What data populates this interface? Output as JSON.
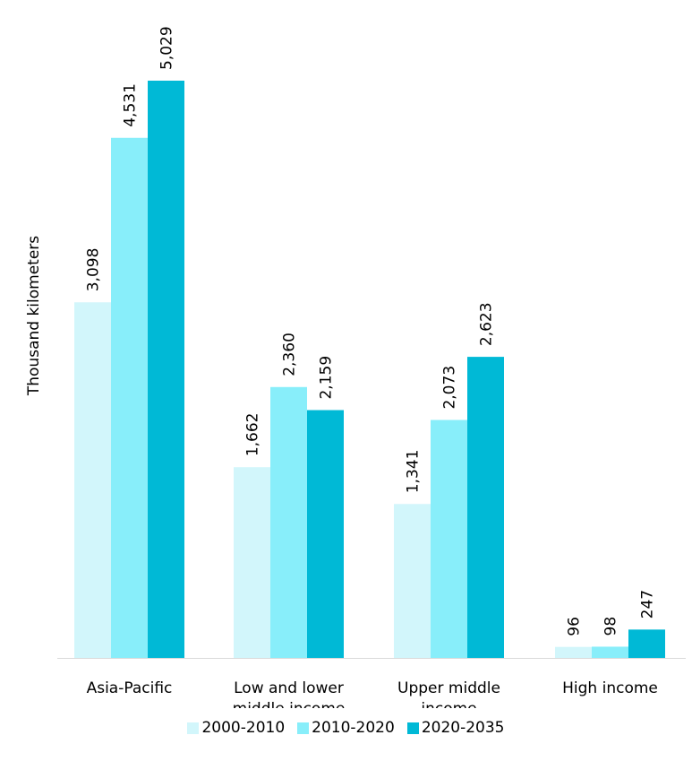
{
  "chart_data": {
    "type": "bar",
    "title": "",
    "xlabel": "",
    "ylabel": "Thousand kilometers",
    "categories": [
      "Asia-Pacific",
      "Low and lower middle income",
      "Upper middle income",
      "High income"
    ],
    "category_lines": [
      [
        "Asia-Pacific"
      ],
      [
        "Low and lower",
        "middle income"
      ],
      [
        "Upper middle",
        "income"
      ],
      [
        "High income"
      ]
    ],
    "series": [
      {
        "name": "2000-2010",
        "color": "#d2f6fb",
        "values": [
          3098,
          1662,
          1341,
          96
        ],
        "labels": [
          "3,098",
          "1,662",
          "1,341",
          "96"
        ]
      },
      {
        "name": "2010-2020",
        "color": "#88eefa",
        "values": [
          4531,
          2360,
          2073,
          98
        ],
        "labels": [
          "4,531",
          "2,360",
          "2,073",
          "98"
        ]
      },
      {
        "name": "2020-2035",
        "color": "#00b9d6",
        "values": [
          5029,
          2159,
          2623,
          247
        ],
        "labels": [
          "5,029",
          "2,159",
          "2,623",
          "247"
        ]
      }
    ],
    "ylim": [
      0,
      5029
    ],
    "grid": false,
    "legend_position": "bottom"
  }
}
